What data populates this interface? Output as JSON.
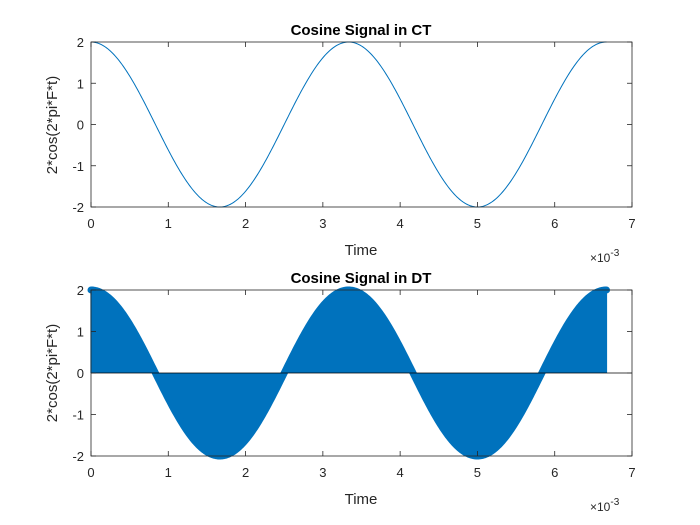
{
  "chart_data": [
    {
      "type": "line",
      "title": "Cosine Signal in CT",
      "xlabel": "Time",
      "ylabel": "2*cos(2*pi*F*t)",
      "x_exponent_label": "×10",
      "x_exponent_power": "-3",
      "xlim": [
        0,
        0.007
      ],
      "ylim": [
        -2,
        2
      ],
      "x_ticks": [
        0,
        0.001,
        0.002,
        0.003,
        0.004,
        0.005,
        0.006,
        0.007
      ],
      "x_tick_labels": [
        "0",
        "1",
        "2",
        "3",
        "4",
        "5",
        "6",
        "7"
      ],
      "y_ticks": [
        -2,
        -1,
        0,
        1,
        2
      ],
      "y_tick_labels": [
        "-2",
        "-1",
        "0",
        "1",
        "2"
      ],
      "signal": {
        "amplitude": 2,
        "frequency_hz": 300,
        "t_start": 0,
        "t_end": 0.00667
      },
      "color": "#0072BD",
      "grid": false
    },
    {
      "type": "stem",
      "title": "Cosine Signal in DT",
      "xlabel": "Time",
      "ylabel": "2*cos(2*pi*F*t)",
      "x_exponent_label": "×10",
      "x_exponent_power": "-3",
      "xlim": [
        0,
        0.007
      ],
      "ylim": [
        -2,
        2
      ],
      "x_ticks": [
        0,
        0.001,
        0.002,
        0.003,
        0.004,
        0.005,
        0.006,
        0.007
      ],
      "x_tick_labels": [
        "0",
        "1",
        "2",
        "3",
        "4",
        "5",
        "6",
        "7"
      ],
      "y_ticks": [
        -2,
        -1,
        0,
        1,
        2
      ],
      "y_tick_labels": [
        "-2",
        "-1",
        "0",
        "1",
        "2"
      ],
      "signal": {
        "amplitude": 2,
        "frequency_hz": 300,
        "t_start": 0,
        "t_end": 0.00667
      },
      "color": "#0072BD",
      "grid": false
    }
  ]
}
